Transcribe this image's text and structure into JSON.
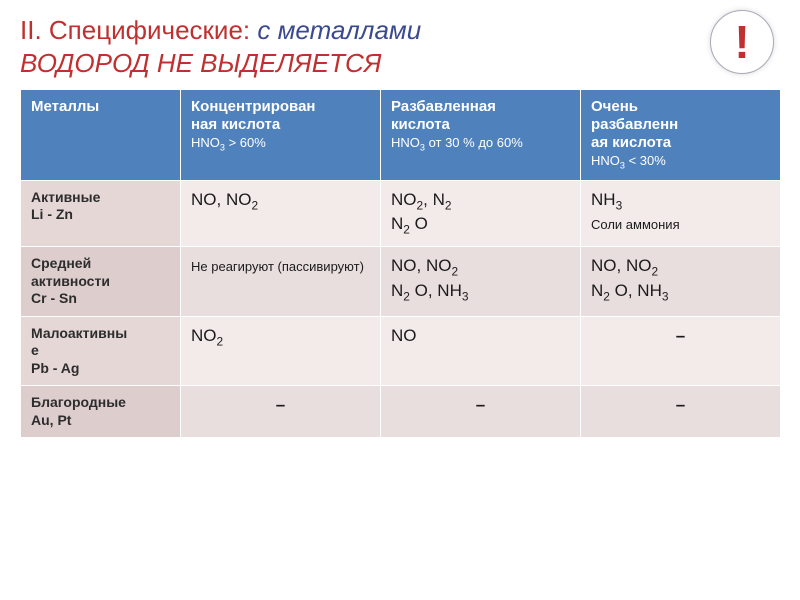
{
  "title": {
    "prefix": "II. Специфические:",
    "em1": "с металлами",
    "em2": "ВОДОРОД НЕ ВЫДЕЛЯЕТСЯ"
  },
  "badge": "!",
  "colors": {
    "header_bg": "#4f81bd",
    "header_fg": "#ffffff",
    "rowhead_bg": "#e6d7d7",
    "cell_bg": "#f3eaea",
    "title_red": "#c03030",
    "title_blue": "#3b4a8f"
  },
  "columns": {
    "c1": "Металлы",
    "c2_main": "Концентрирован",
    "c2_main2": "ная кислота",
    "c2_sub": "HNO",
    "c2_tail": " > 60%",
    "c3_main": "Разбавленная",
    "c3_main2": "кислота",
    "c3_sub": "HNO",
    "c3_tail": "  от 30 % до 60%",
    "c4_main": "Очень",
    "c4_main2": "разбавленн",
    "c4_main3": "ая кислота",
    "c4_sub": "HNO",
    "c4_tail": " < 30%"
  },
  "rows": {
    "r1": {
      "head1": "Активные",
      "head2": "Li - Zn",
      "c2": " NO, NO",
      "c3a": "NO",
      "c3a2": ", N",
      "c3b": "N",
      "c3b2": " O",
      "c4a": " NH",
      "c4b": "Соли аммония"
    },
    "r2": {
      "head1": "Средней",
      "head2": "активности",
      "head3": "Cr - Sn",
      "c2": "Не реагируют (пассивируют)",
      "c3a": " NO, NO",
      "c3b": "N",
      "c3b2": " O, NH",
      "c4a": " NO, NO",
      "c4b": "N",
      "c4b2": " O, NH"
    },
    "r3": {
      "head1": "Малоактивны",
      "head2": "е",
      "head3": "Pb - Ag",
      "c2": "NO",
      "c3": " NO",
      "c4": "–"
    },
    "r4": {
      "head1": "Благородные",
      "head2": "Au, Pt",
      "c2": "–",
      "c3": "–",
      "c4": "–"
    }
  }
}
